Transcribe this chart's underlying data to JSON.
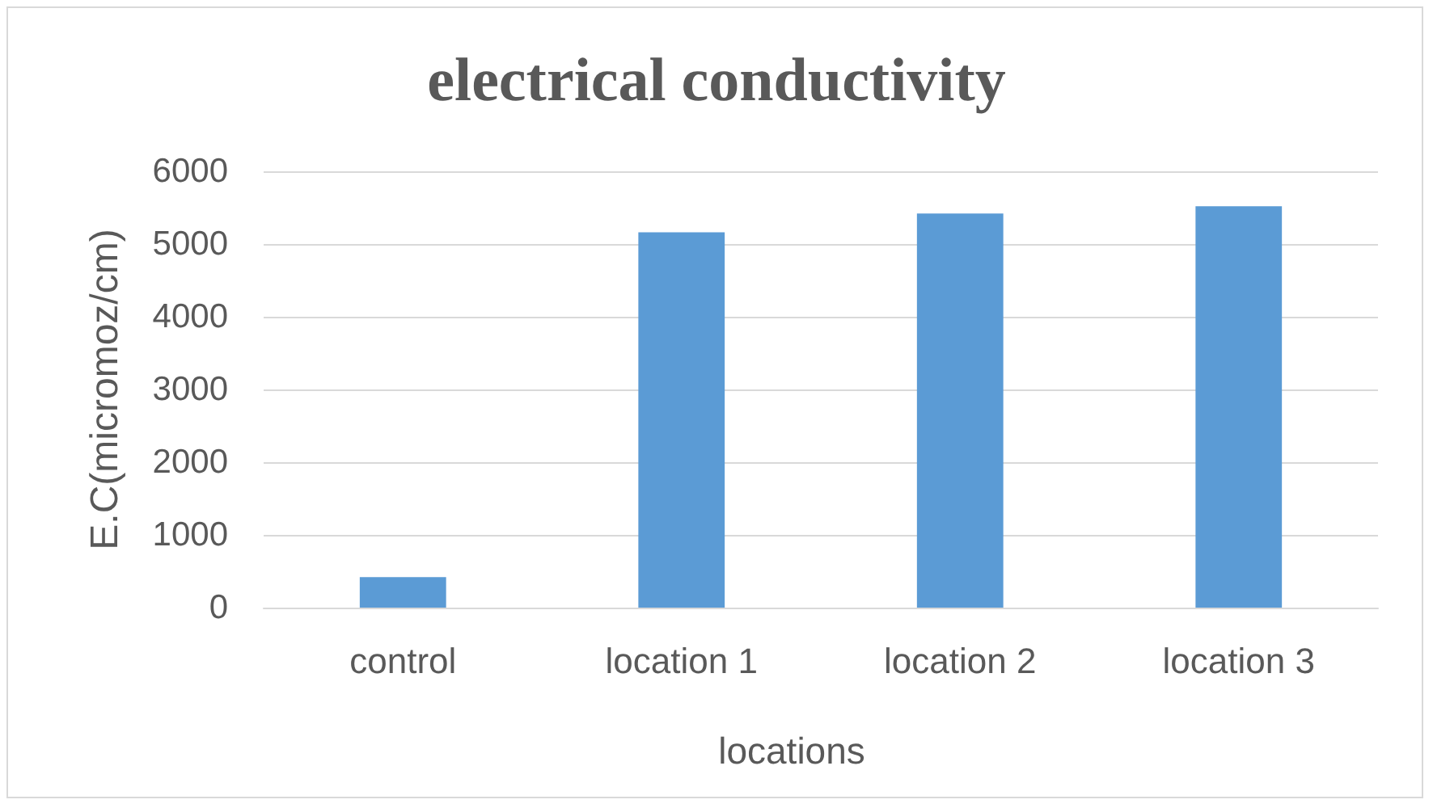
{
  "chart_data": {
    "type": "bar",
    "title": "electrical conductivity",
    "xlabel": "locations",
    "ylabel": "E.C(micromoz/cm)",
    "categories": [
      "control",
      "location 1",
      "location 2",
      "location 3"
    ],
    "values": [
      420,
      5160,
      5420,
      5520
    ],
    "color": "#5b9bd5",
    "ylim": [
      0,
      6000
    ],
    "yticks": [
      0,
      1000,
      2000,
      3000,
      4000,
      5000,
      6000
    ],
    "grid": "y"
  }
}
